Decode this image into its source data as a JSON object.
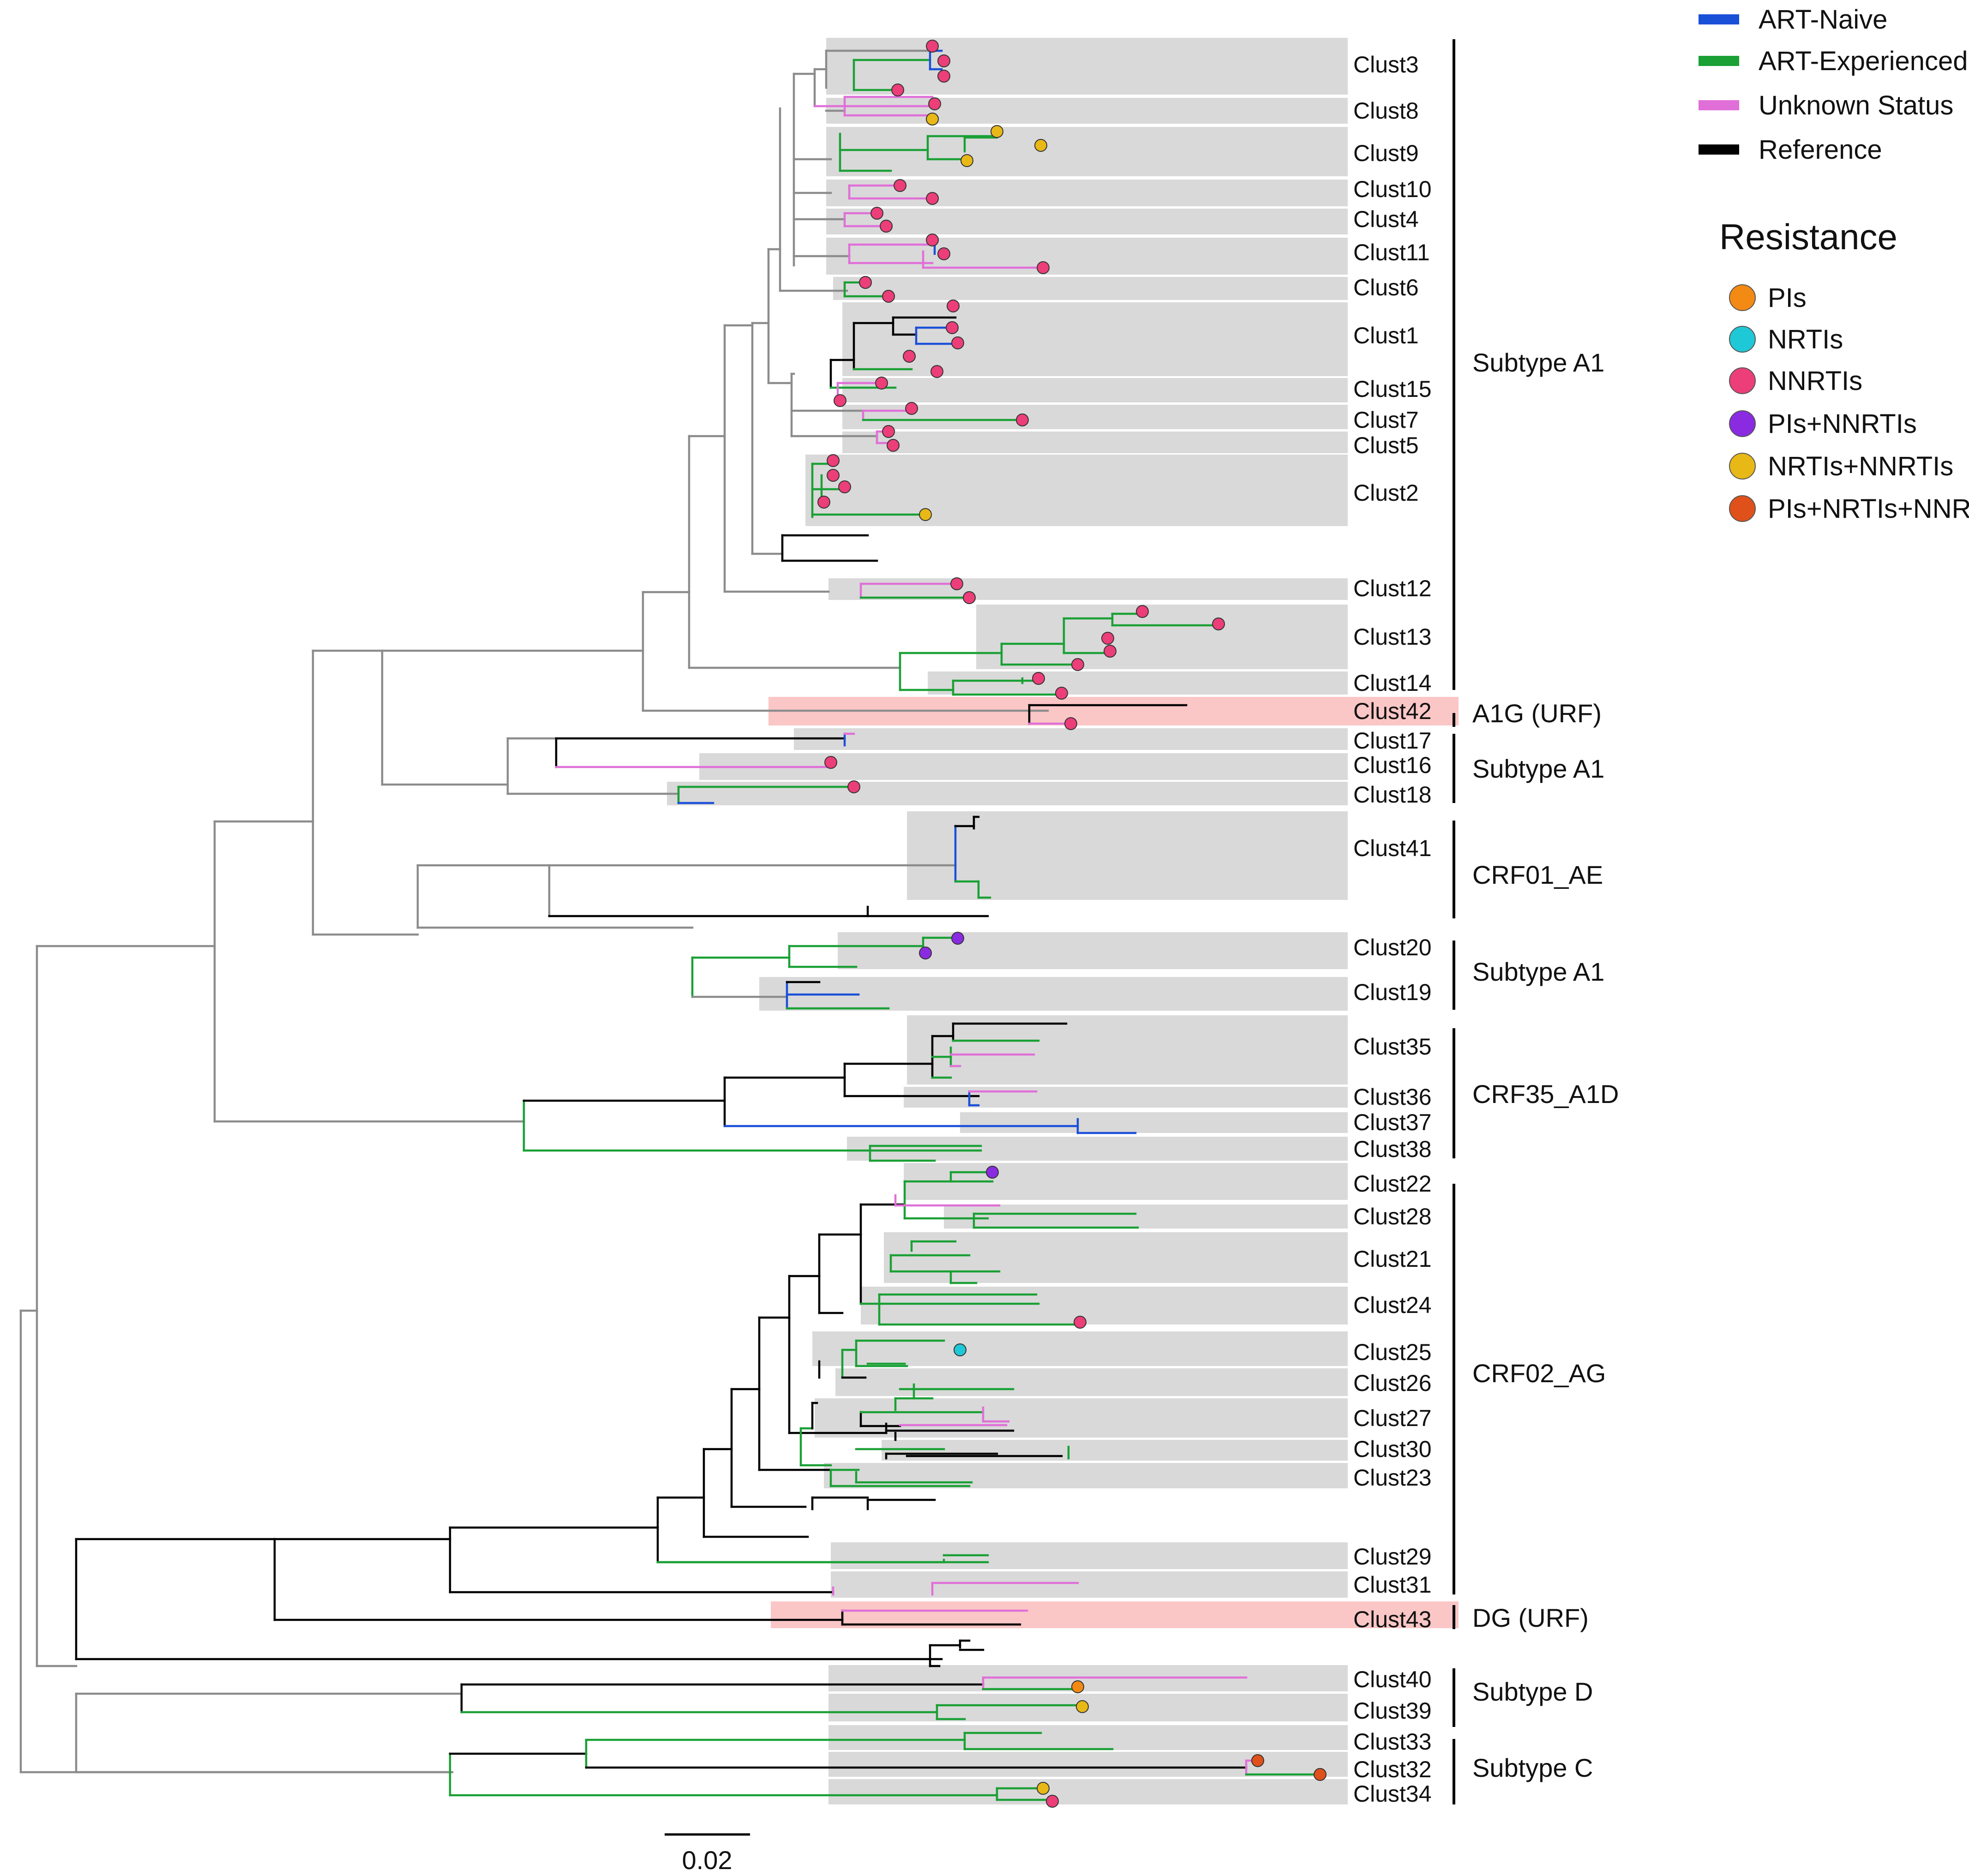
{
  "colors": {
    "naive": "#1a4fd8",
    "experienced": "#1aa035",
    "unknown": "#e06fd8",
    "reference": "#000000",
    "backbone": "#8c8c8c",
    "cluster_box": "#d9d9d9",
    "urf_box": "#fbc6c6",
    "PIs": "#f38a13",
    "NRTIs": "#1fc8d6",
    "NNRTIs": "#ec3e78",
    "PIs+NNRTIs": "#8a2be2",
    "NRTIs+NNRTIs": "#e8b816",
    "PIs+NRTIs+NNRTIs": "#e0501a"
  },
  "legend": {
    "status": [
      {
        "label": "ART-Naive",
        "color": "naive"
      },
      {
        "label": "ART-Experienced",
        "color": "experienced"
      },
      {
        "label": "Unknown Status",
        "color": "unknown"
      },
      {
        "label": "Reference",
        "color": "reference"
      }
    ],
    "resistance_title": "Resistance",
    "resistance": [
      {
        "label": "PIs",
        "color": "PIs"
      },
      {
        "label": "NRTIs",
        "color": "NRTIs"
      },
      {
        "label": "NNRTIs",
        "color": "NNRTIs"
      },
      {
        "label": "PIs+NNRTIs",
        "color": "PIs+NNRTIs"
      },
      {
        "label": "NRTIs+NNRTIs",
        "color": "NRTIs+NNRTIs"
      },
      {
        "label": "PIs+NRTIs+NNRTIs",
        "color": "PIs+NRTIs+NNRTIs"
      }
    ]
  },
  "clusters": [
    {
      "label": "Clust3"
    },
    {
      "label": "Clust8"
    },
    {
      "label": "Clust9"
    },
    {
      "label": "Clust10"
    },
    {
      "label": "Clust4"
    },
    {
      "label": "Clust11"
    },
    {
      "label": "Clust6"
    },
    {
      "label": "Clust1"
    },
    {
      "label": "Clust15"
    },
    {
      "label": "Clust7"
    },
    {
      "label": "Clust5"
    },
    {
      "label": "Clust2"
    },
    {
      "label": "Clust12"
    },
    {
      "label": "Clust13"
    },
    {
      "label": "Clust14"
    },
    {
      "label": "Clust42"
    },
    {
      "label": "Clust17"
    },
    {
      "label": "Clust16"
    },
    {
      "label": "Clust18"
    },
    {
      "label": "Clust41"
    },
    {
      "label": "Clust20"
    },
    {
      "label": "Clust19"
    },
    {
      "label": "Clust35"
    },
    {
      "label": "Clust36"
    },
    {
      "label": "Clust37"
    },
    {
      "label": "Clust38"
    },
    {
      "label": "Clust22"
    },
    {
      "label": "Clust28"
    },
    {
      "label": "Clust21"
    },
    {
      "label": "Clust24"
    },
    {
      "label": "Clust25"
    },
    {
      "label": "Clust26"
    },
    {
      "label": "Clust27"
    },
    {
      "label": "Clust30"
    },
    {
      "label": "Clust23"
    },
    {
      "label": "Clust29"
    },
    {
      "label": "Clust31"
    },
    {
      "label": "Clust43"
    },
    {
      "label": "Clust40"
    },
    {
      "label": "Clust39"
    },
    {
      "label": "Clust33"
    },
    {
      "label": "Clust32"
    },
    {
      "label": "Clust34"
    }
  ],
  "groups": [
    {
      "label": "Subtype A1"
    },
    {
      "label": "A1G (URF)"
    },
    {
      "label": "Subtype A1"
    },
    {
      "label": "CRF01_AE"
    },
    {
      "label": "Subtype A1"
    },
    {
      "label": "CRF35_A1D"
    },
    {
      "label": "CRF02_AG"
    },
    {
      "label": "DG (URF)"
    },
    {
      "label": "Subtype D"
    },
    {
      "label": "Subtype C"
    }
  ],
  "tips": [
    {
      "cluster": "Clust3",
      "resistance": "NNRTIs"
    },
    {
      "cluster": "Clust3",
      "resistance": "NNRTIs"
    },
    {
      "cluster": "Clust3",
      "resistance": "NNRTIs"
    },
    {
      "cluster": "Clust3",
      "resistance": "NNRTIs"
    },
    {
      "cluster": "Clust8",
      "resistance": "NNRTIs"
    },
    {
      "cluster": "Clust8",
      "resistance": "NRTIs+NNRTIs"
    },
    {
      "cluster": "Clust9",
      "resistance": "NRTIs+NNRTIs"
    },
    {
      "cluster": "Clust9",
      "resistance": "NRTIs+NNRTIs"
    },
    {
      "cluster": "Clust9",
      "resistance": "NRTIs+NNRTIs"
    },
    {
      "cluster": "Clust10",
      "resistance": "NNRTIs"
    },
    {
      "cluster": "Clust10",
      "resistance": "NNRTIs"
    },
    {
      "cluster": "Clust4",
      "resistance": "NNRTIs"
    },
    {
      "cluster": "Clust4",
      "resistance": "NNRTIs"
    },
    {
      "cluster": "Clust11",
      "resistance": "NNRTIs"
    },
    {
      "cluster": "Clust11",
      "resistance": "NNRTIs"
    },
    {
      "cluster": "Clust11",
      "resistance": "NNRTIs"
    },
    {
      "cluster": "Clust6",
      "resistance": "NNRTIs"
    },
    {
      "cluster": "Clust6",
      "resistance": "NNRTIs"
    },
    {
      "cluster": "Clust1",
      "resistance": "NNRTIs"
    },
    {
      "cluster": "Clust1",
      "resistance": "NNRTIs"
    },
    {
      "cluster": "Clust1",
      "resistance": "NNRTIs"
    },
    {
      "cluster": "Clust1",
      "resistance": "NNRTIs"
    },
    {
      "cluster": "Clust1",
      "resistance": "NNRTIs"
    },
    {
      "cluster": "Clust15",
      "resistance": "NNRTIs"
    },
    {
      "cluster": "Clust15",
      "resistance": "NNRTIs"
    },
    {
      "cluster": "Clust7",
      "resistance": "NNRTIs"
    },
    {
      "cluster": "Clust7",
      "resistance": "NNRTIs"
    },
    {
      "cluster": "Clust5",
      "resistance": "NNRTIs"
    },
    {
      "cluster": "Clust5",
      "resistance": "NNRTIs"
    },
    {
      "cluster": "Clust2",
      "resistance": "NNRTIs"
    },
    {
      "cluster": "Clust2",
      "resistance": "NNRTIs"
    },
    {
      "cluster": "Clust2",
      "resistance": "NNRTIs"
    },
    {
      "cluster": "Clust2",
      "resistance": "NNRTIs"
    },
    {
      "cluster": "Clust2",
      "resistance": "NRTIs+NNRTIs"
    },
    {
      "cluster": "Clust12",
      "resistance": "NNRTIs"
    },
    {
      "cluster": "Clust12",
      "resistance": "NNRTIs"
    },
    {
      "cluster": "Clust13",
      "resistance": "NNRTIs"
    },
    {
      "cluster": "Clust13",
      "resistance": "NNRTIs"
    },
    {
      "cluster": "Clust13",
      "resistance": "NNRTIs"
    },
    {
      "cluster": "Clust13",
      "resistance": "NNRTIs"
    },
    {
      "cluster": "Clust13",
      "resistance": "NNRTIs"
    },
    {
      "cluster": "Clust14",
      "resistance": "NNRTIs"
    },
    {
      "cluster": "Clust14",
      "resistance": "NNRTIs"
    },
    {
      "cluster": "Clust42",
      "resistance": "NNRTIs"
    },
    {
      "cluster": "Clust16",
      "resistance": "NNRTIs"
    },
    {
      "cluster": "Clust18",
      "resistance": "NNRTIs"
    },
    {
      "cluster": "Clust20",
      "resistance": "PIs+NNRTIs"
    },
    {
      "cluster": "Clust20",
      "resistance": "PIs+NNRTIs"
    },
    {
      "cluster": "Clust22",
      "resistance": "PIs+NNRTIs"
    },
    {
      "cluster": "Clust24",
      "resistance": "NNRTIs"
    },
    {
      "cluster": "Clust25",
      "resistance": "NRTIs"
    },
    {
      "cluster": "Clust40",
      "resistance": "PIs"
    },
    {
      "cluster": "Clust39",
      "resistance": "NRTIs+NNRTIs"
    },
    {
      "cluster": "Clust32",
      "resistance": "PIs+NRTIs+NNRTIs"
    },
    {
      "cluster": "Clust32",
      "resistance": "PIs+NRTIs+NNRTIs"
    },
    {
      "cluster": "Clust34",
      "resistance": "NRTIs+NNRTIs"
    },
    {
      "cluster": "Clust34",
      "resistance": "NNRTIs"
    }
  ],
  "scale_bar": {
    "label": "0.02",
    "length": 0.02
  }
}
